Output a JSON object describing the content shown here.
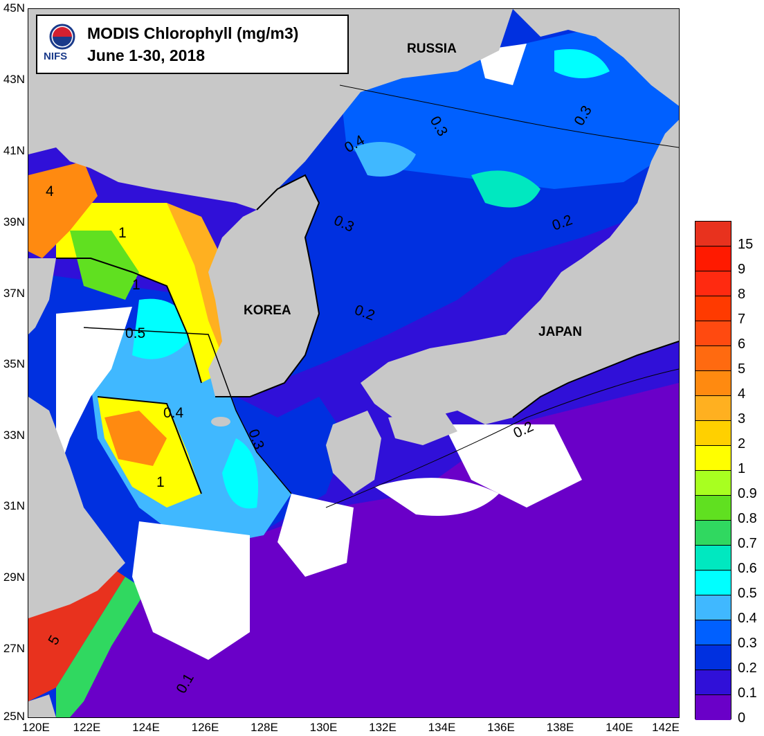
{
  "title": {
    "line1": "MODIS Chlorophyll (mg/m3)",
    "line2": "June 1-30, 2018",
    "logo_text": "NIFS"
  },
  "regions": {
    "russia": "RUSSIA",
    "korea": "KOREA",
    "japan": "JAPAN"
  },
  "lat_labels": [
    "45N",
    "43N",
    "41N",
    "39N",
    "37N",
    "35N",
    "33N",
    "31N",
    "29N",
    "27N",
    "25N"
  ],
  "lon_labels": [
    "120E",
    "122E",
    "124E",
    "126E",
    "128E",
    "130E",
    "132E",
    "134E",
    "136E",
    "138E",
    "140E",
    "142E"
  ],
  "contour_labels": [
    "0.3",
    "0.3",
    "0.4",
    "0.3",
    "0.2",
    "0.2",
    "0.2",
    "0.5",
    "1",
    "1",
    "4",
    "0.4",
    "0.3",
    "1",
    "0.1",
    "5"
  ],
  "colorbar": {
    "labels": [
      "15",
      "9",
      "8",
      "7",
      "6",
      "5",
      "4",
      "3",
      "2",
      "1",
      "0.9",
      "0.8",
      "0.7",
      "0.6",
      "0.5",
      "0.4",
      "0.3",
      "0.2",
      "0.1",
      "0"
    ],
    "colors": [
      "#e8321e",
      "#ff1a00",
      "#ff2a10",
      "#ff3a00",
      "#ff4a10",
      "#ff6a10",
      "#ff8a10",
      "#ffb020",
      "#ffd000",
      "#ffff00",
      "#a8ff20",
      "#60e020",
      "#30d860",
      "#00e8c0",
      "#00ffff",
      "#40b8ff",
      "#0060ff",
      "#0030e0",
      "#3010d8",
      "#6a00c8"
    ]
  },
  "colors": {
    "land": "#c8c8c8",
    "no_data": "#ffffff",
    "ocean_low": "#6a00c8"
  }
}
